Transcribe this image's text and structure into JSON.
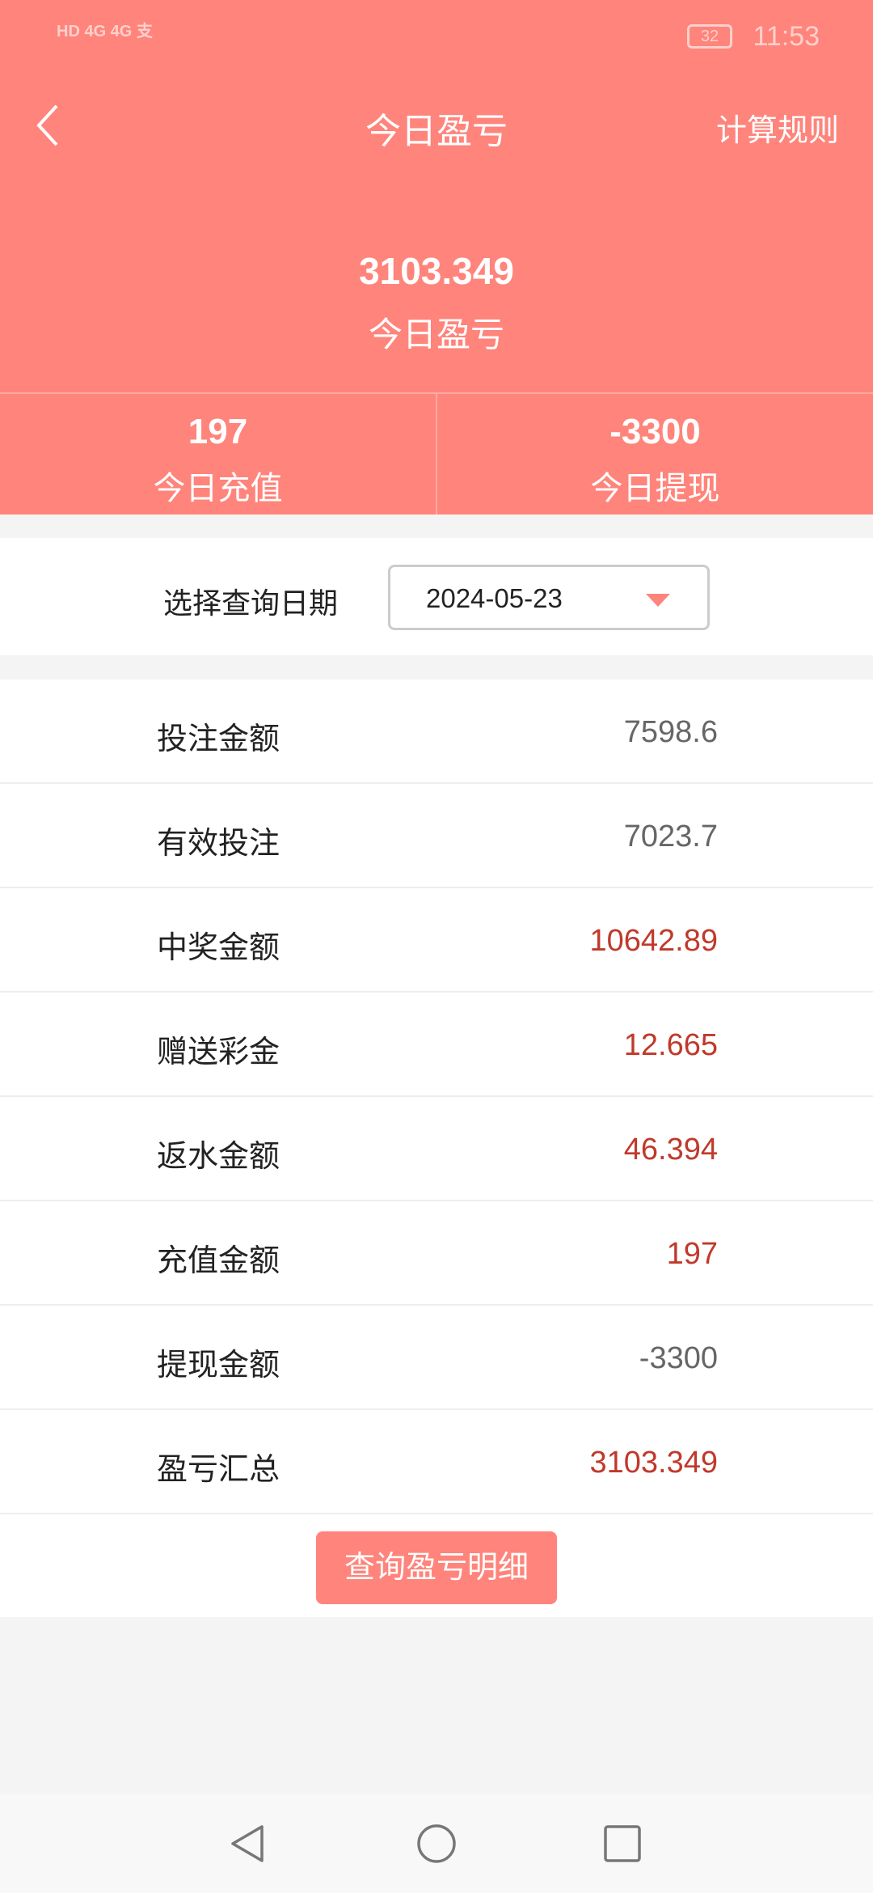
{
  "status_bar": {
    "left": "HD 4G 4G 支",
    "battery": "32",
    "time": "11:53"
  },
  "header": {
    "title": "今日盈亏",
    "rule_link": "计算规则",
    "total_value": "3103.349",
    "total_label": "今日盈亏",
    "stats": [
      {
        "value": "197",
        "label": "今日充值"
      },
      {
        "value": "-3300",
        "label": "今日提现"
      }
    ]
  },
  "date_filter": {
    "label": "选择查询日期",
    "value": "2024-05-23"
  },
  "rows": [
    {
      "label": "投注金额",
      "value": "7598.6",
      "highlight": false
    },
    {
      "label": "有效投注",
      "value": "7023.7",
      "highlight": false
    },
    {
      "label": "中奖金额",
      "value": "10642.89",
      "highlight": true
    },
    {
      "label": "赠送彩金",
      "value": "12.665",
      "highlight": true
    },
    {
      "label": "返水金额",
      "value": "46.394",
      "highlight": true
    },
    {
      "label": "充值金额",
      "value": "197",
      "highlight": true
    },
    {
      "label": "提现金额",
      "value": "-3300",
      "highlight": false
    },
    {
      "label": "盈亏汇总",
      "value": "3103.349",
      "highlight": true
    }
  ],
  "detail_button": "查询盈亏明细",
  "colors": {
    "accent": "#ff847b",
    "highlight": "#c0392b"
  }
}
